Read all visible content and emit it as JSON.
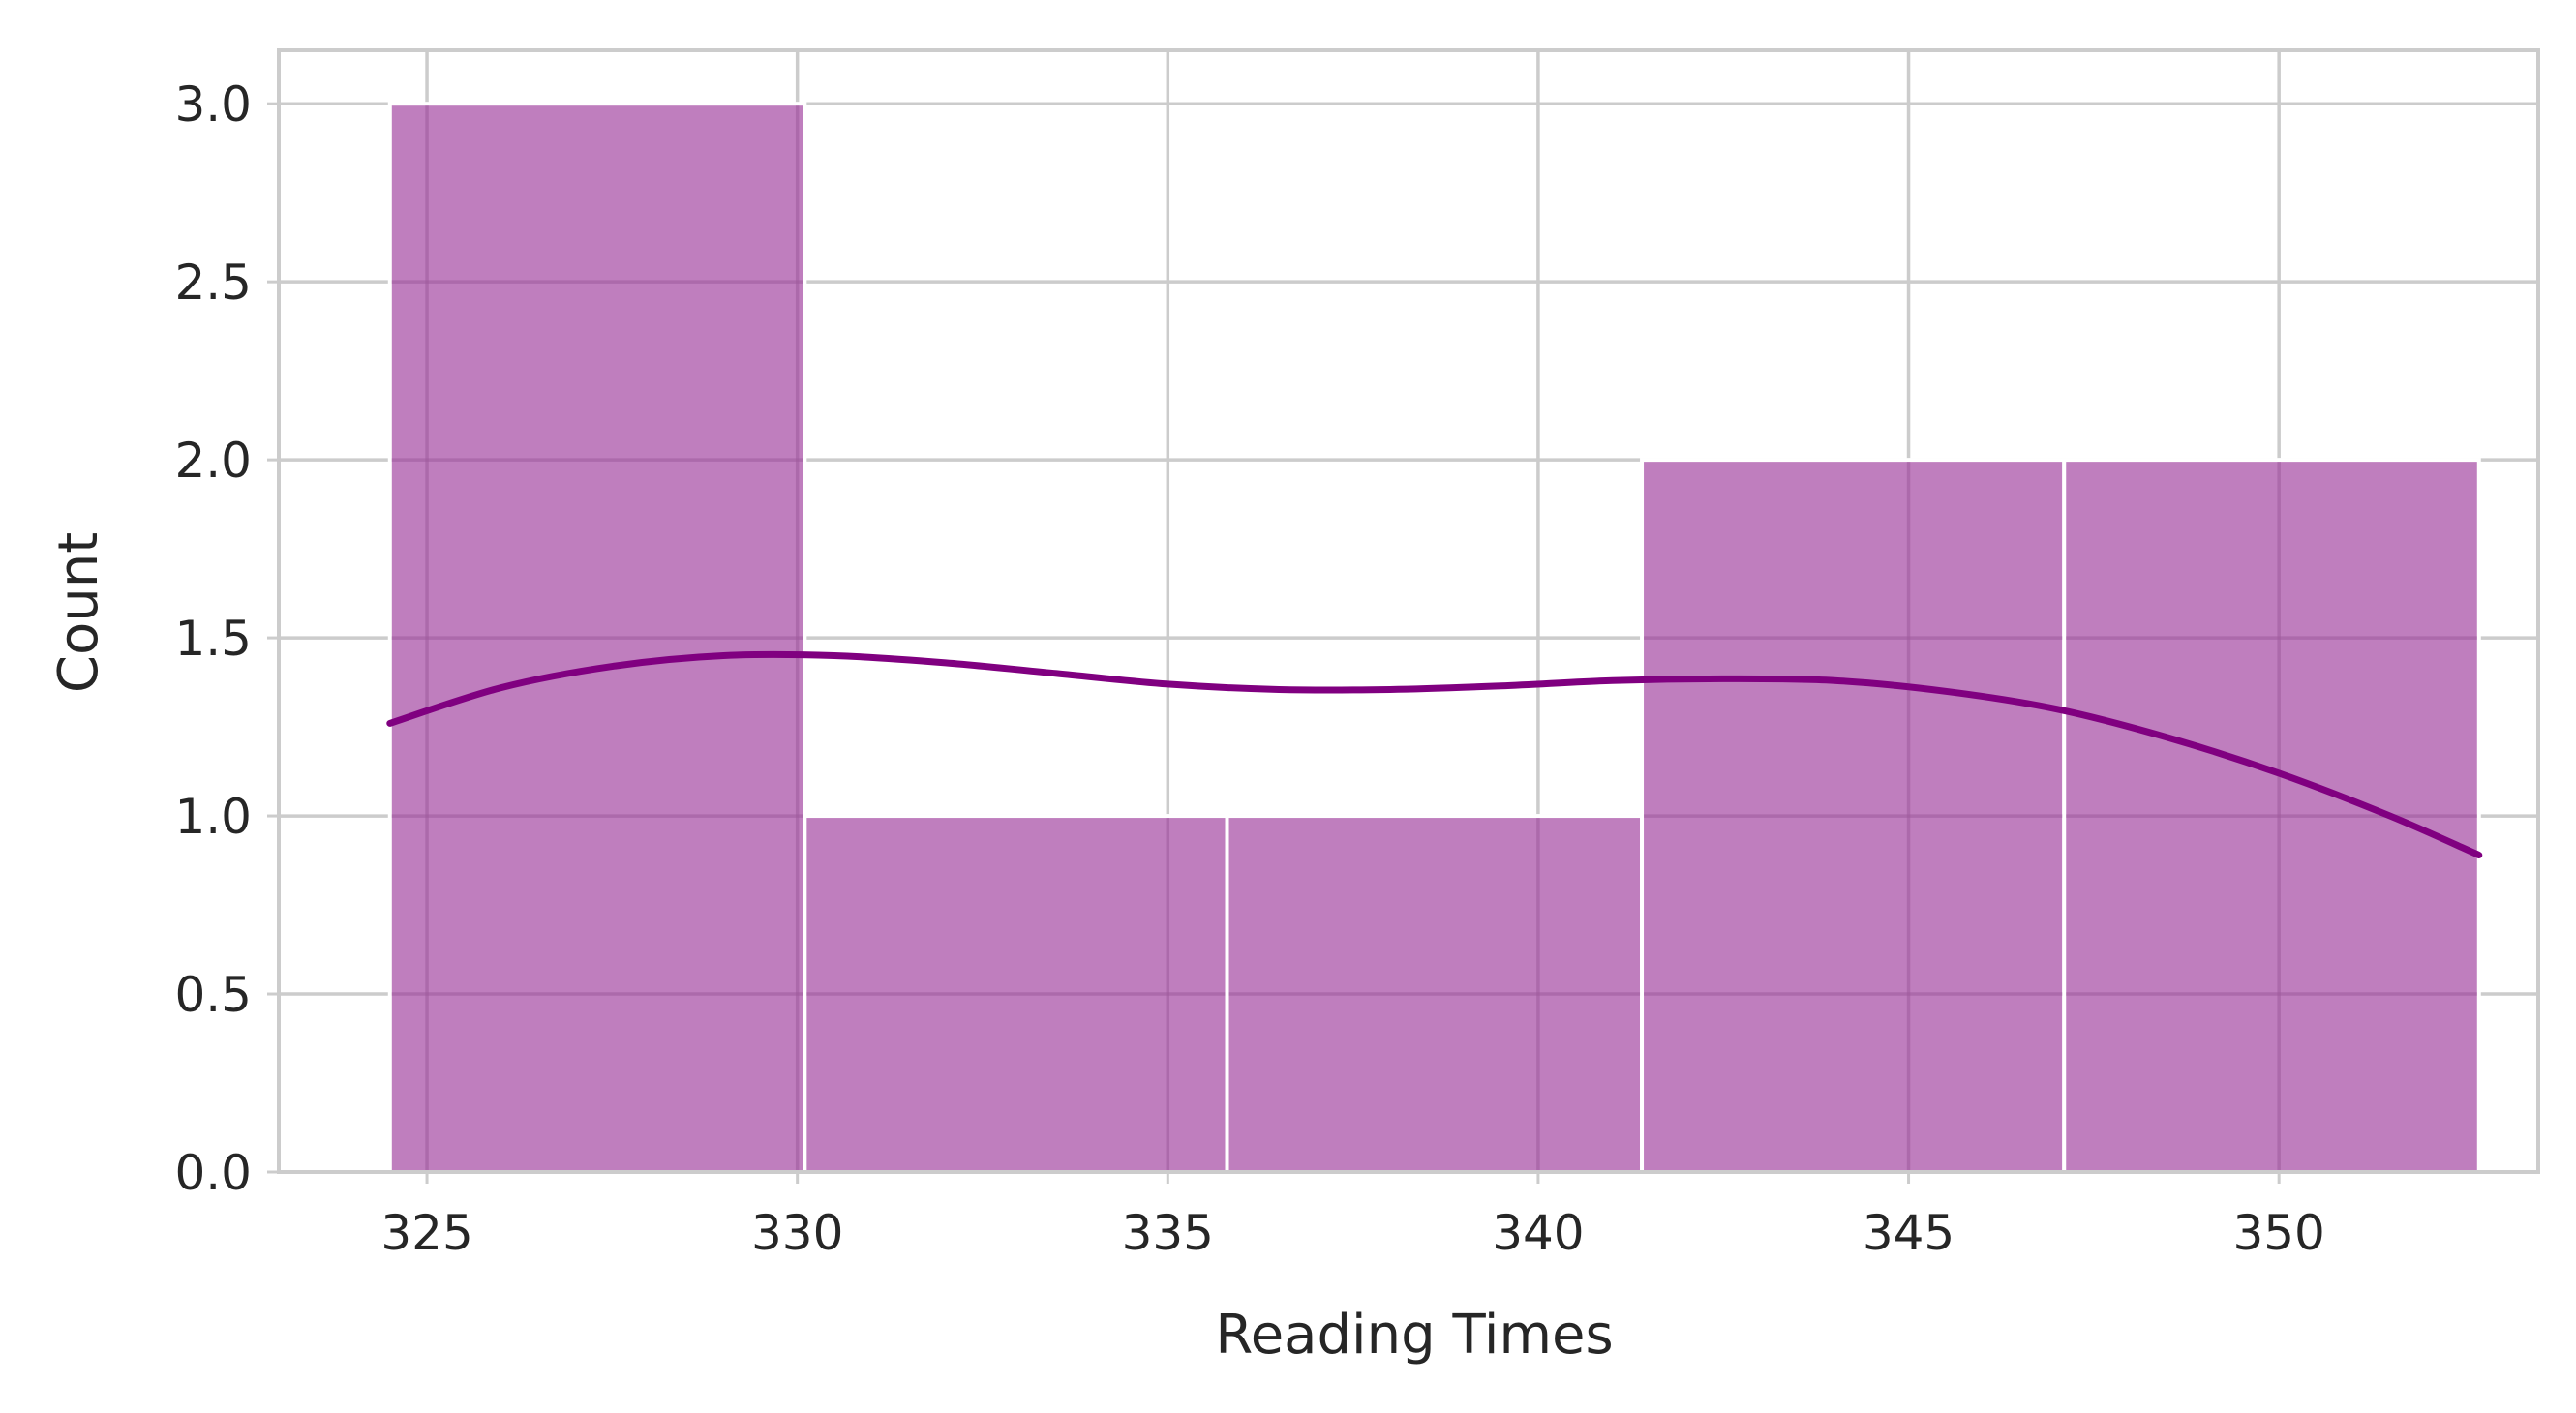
{
  "chart_data": {
    "type": "bar",
    "subtype": "histogram-with-kde",
    "title": "",
    "xlabel": "Reading Times",
    "ylabel": "Count",
    "xlim": [
      323.0,
      353.5
    ],
    "ylim": [
      0.0,
      3.15
    ],
    "xticks": [
      325,
      330,
      335,
      340,
      345,
      350
    ],
    "xtick_labels": [
      "325",
      "330",
      "335",
      "340",
      "345",
      "350"
    ],
    "yticks": [
      0.0,
      0.5,
      1.0,
      1.5,
      2.0,
      2.5,
      3.0
    ],
    "ytick_labels": [
      "0.0",
      "0.5",
      "1.0",
      "1.5",
      "2.0",
      "2.5",
      "3.0"
    ],
    "bins": [
      {
        "x0": 324.5,
        "x1": 330.1,
        "count": 3
      },
      {
        "x0": 330.1,
        "x1": 335.8,
        "count": 1
      },
      {
        "x0": 335.8,
        "x1": 341.4,
        "count": 1
      },
      {
        "x0": 341.4,
        "x1": 347.1,
        "count": 2
      },
      {
        "x0": 347.1,
        "x1": 352.7,
        "count": 2
      }
    ],
    "kde": {
      "x": [
        324.5,
        326.0,
        327.5,
        329.0,
        330.5,
        332.0,
        333.5,
        335.0,
        336.5,
        338.0,
        339.5,
        341.0,
        342.5,
        344.0,
        345.5,
        347.0,
        348.5,
        350.0,
        351.5,
        352.7
      ],
      "y": [
        1.26,
        1.36,
        1.42,
        1.45,
        1.45,
        1.43,
        1.4,
        1.37,
        1.355,
        1.355,
        1.365,
        1.38,
        1.385,
        1.38,
        1.35,
        1.3,
        1.22,
        1.12,
        1.0,
        0.89
      ]
    },
    "grid": true,
    "colors": {
      "bar_fill": "#bf7ebe",
      "bar_edge": "#ffffff",
      "kde_line": "#800080",
      "grid": "#cccccc",
      "spine": "#cccccc",
      "text": "#262626"
    }
  }
}
